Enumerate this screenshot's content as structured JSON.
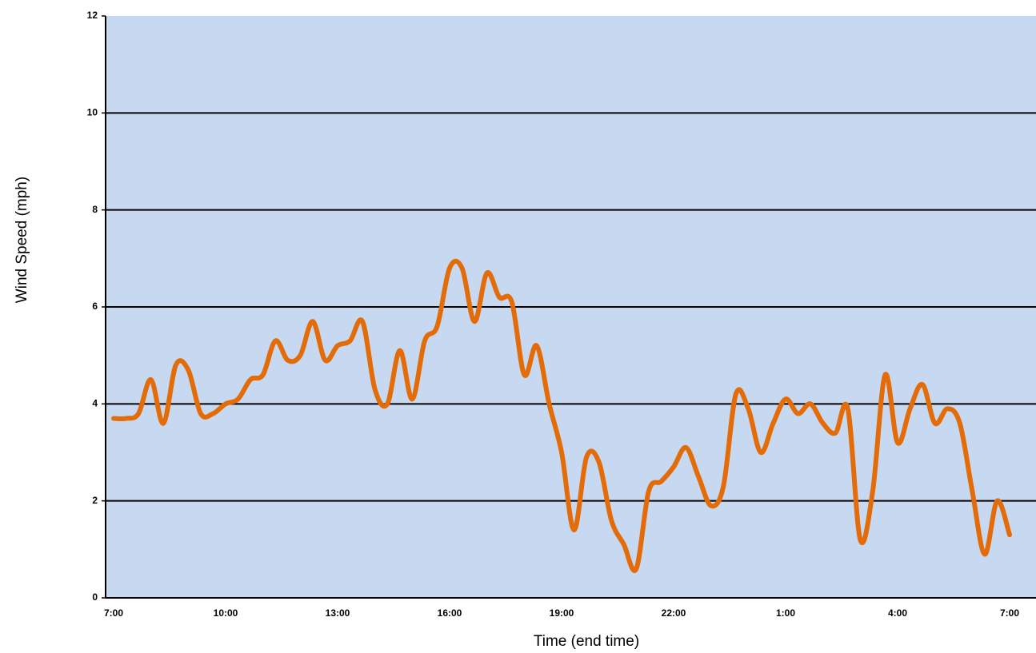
{
  "chart_data": {
    "type": "line",
    "x_label": "Time (end time)",
    "y_label": "Wind Speed (mph)",
    "categories": [
      "7:00",
      null,
      null,
      null,
      null,
      null,
      null,
      null,
      null,
      "10:00",
      null,
      null,
      null,
      null,
      null,
      null,
      null,
      null,
      "13:00",
      null,
      null,
      null,
      null,
      null,
      null,
      null,
      null,
      "16:00",
      null,
      null,
      null,
      null,
      null,
      null,
      null,
      null,
      "19:00",
      null,
      null,
      null,
      null,
      null,
      null,
      null,
      null,
      "22:00",
      null,
      null,
      null,
      null,
      null,
      null,
      null,
      null,
      "1:00",
      null,
      null,
      null,
      null,
      null,
      null,
      null,
      null,
      "4:00",
      null,
      null,
      null,
      null,
      null,
      null,
      null,
      null,
      "7:00"
    ],
    "series": [
      {
        "color": "#e36c09",
        "values": [
          3.7,
          3.7,
          3.8,
          4.5,
          3.6,
          4.8,
          4.7,
          3.8,
          3.8,
          4.0,
          4.1,
          4.5,
          4.6,
          5.3,
          4.9,
          5.0,
          5.7,
          4.9,
          5.2,
          5.3,
          5.7,
          4.3,
          4.0,
          5.1,
          4.1,
          5.3,
          5.6,
          6.8,
          6.8,
          5.7,
          6.7,
          6.2,
          6.1,
          4.6,
          5.2,
          4.0,
          3.0,
          1.4,
          2.9,
          2.8,
          1.6,
          1.1,
          0.6,
          2.2,
          2.4,
          2.7,
          3.1,
          2.5,
          1.9,
          2.3,
          4.2,
          3.9,
          3.0,
          3.6,
          4.1,
          3.8,
          4.0,
          3.6,
          3.4,
          3.9,
          1.2,
          2.2,
          4.6,
          3.2,
          3.9,
          4.4,
          3.6,
          3.9,
          3.6,
          2.2,
          0.9,
          2.0,
          1.3
        ]
      }
    ],
    "ylim": [
      0,
      12
    ],
    "yticks": [
      0,
      2,
      4,
      6,
      8,
      10,
      12
    ],
    "grid": true,
    "background": "#c6d9f1"
  }
}
